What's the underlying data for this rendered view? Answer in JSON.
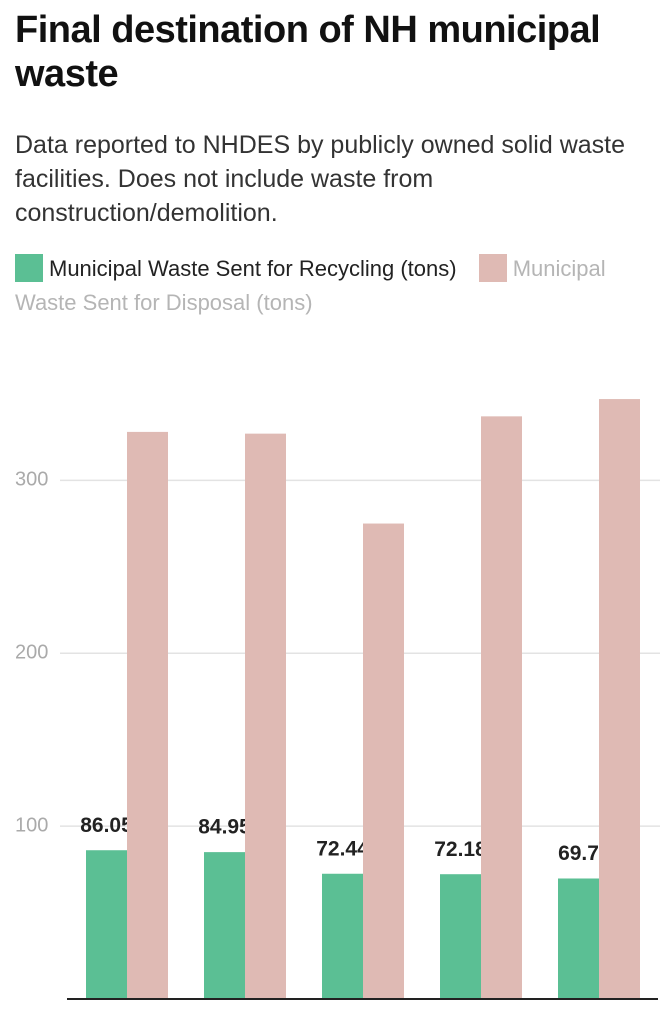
{
  "chart_data": {
    "type": "bar",
    "title": "Final destination of NH municipal waste",
    "subtitle": "Data reported to NHDES by publicly owned solid waste facilities. Does not include waste from construction/demolition.",
    "categories": [
      null,
      null,
      null,
      null,
      null
    ],
    "series": [
      {
        "name": "Municipal Waste Sent for Recycling (tons)",
        "color": "#5bbf94",
        "values": [
          86.05,
          84.95,
          72.44,
          72.18,
          69.7
        ]
      },
      {
        "name": "Municipal Waste Sent for Disposal (tons)",
        "color": "#dfbab4",
        "values": [
          328,
          327,
          275,
          337,
          347
        ]
      }
    ],
    "ylim": [
      0,
      380
    ],
    "yticks": [
      100,
      200,
      300
    ],
    "grid": true
  }
}
